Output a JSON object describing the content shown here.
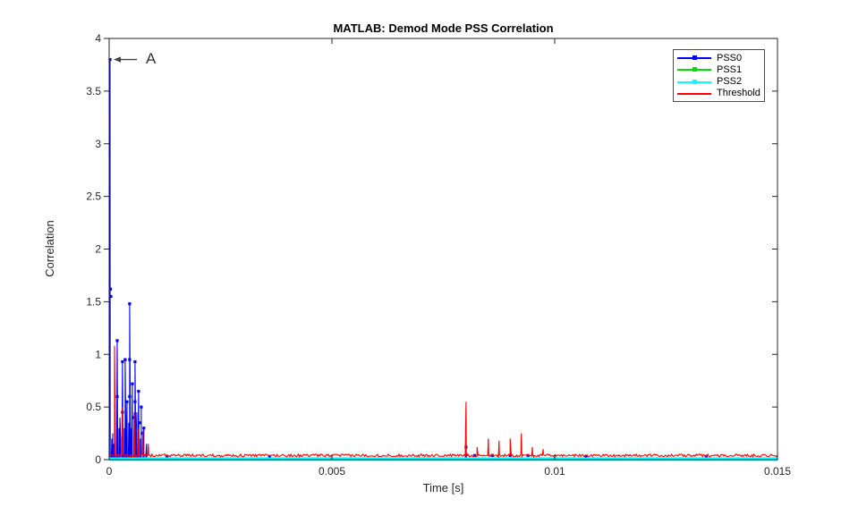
{
  "figure": {
    "title": "MATLAB: Demod Mode PSS Correlation",
    "xlabel": "Time [s]",
    "ylabel": "Correlation",
    "background_color": "#ffffff",
    "axis_color": "#262626"
  },
  "annotation": {
    "text": "A",
    "arrow_glyph": "left-arrow",
    "points_to": {
      "x": 2e-05,
      "y": 3.8
    },
    "color": "#333333"
  },
  "legend": {
    "position": "top-right",
    "entries": [
      {
        "label": "PSS0",
        "color": "#0000ff",
        "marker": true
      },
      {
        "label": "PSS1",
        "color": "#00e000",
        "marker": true
      },
      {
        "label": "PSS2",
        "color": "#00ffff",
        "marker": true
      },
      {
        "label": "Threshold",
        "color": "#ff0000",
        "marker": false
      }
    ]
  },
  "chart_data": {
    "type": "line",
    "title": "MATLAB: Demod Mode PSS Correlation",
    "xlabel": "Time [s]",
    "ylabel": "Correlation",
    "xlim": [
      0,
      0.015
    ],
    "ylim": [
      0,
      4
    ],
    "grid": false,
    "legend_position": "top-right",
    "xticks": {
      "values": [
        0,
        0.005,
        0.01,
        0.015
      ],
      "labels": [
        "0",
        "0.005",
        "0.01",
        "0.015"
      ]
    },
    "yticks": {
      "values": [
        0,
        0.5,
        1,
        1.5,
        2,
        2.5,
        3,
        3.5,
        4
      ],
      "labels": [
        "0",
        "0.5",
        "1",
        "1.5",
        "2",
        "2.5",
        "3",
        "3.5",
        "4"
      ]
    },
    "series": [
      {
        "name": "PSS0",
        "color": "#0000ff",
        "linewidth": 1.1,
        "baseline": 0.012,
        "noise_amp": 0.006,
        "spike_halfwidth": 2e-05,
        "spikes": [
          [
            2e-05,
            3.8
          ],
          [
            6e-05,
            0.2
          ],
          [
            8e-05,
            0.25
          ],
          [
            0.0001,
            0.15
          ],
          [
            0.00012,
            0.3
          ],
          [
            0.00014,
            0.25
          ],
          [
            0.00018,
            1.13
          ],
          [
            0.00022,
            0.3
          ],
          [
            0.00024,
            0.4
          ],
          [
            0.00026,
            0.2
          ],
          [
            0.0003,
            0.93
          ],
          [
            0.00034,
            0.3
          ],
          [
            0.00036,
            0.95
          ],
          [
            0.0004,
            0.55
          ],
          [
            0.00044,
            0.35
          ],
          [
            0.00046,
            1.48
          ],
          [
            0.0005,
            0.3
          ],
          [
            0.00052,
            0.72
          ],
          [
            0.00056,
            0.25
          ],
          [
            0.00058,
            0.93
          ],
          [
            0.00062,
            0.45
          ],
          [
            0.00066,
            0.65
          ],
          [
            0.0007,
            0.2
          ],
          [
            0.00072,
            0.5
          ],
          [
            0.00076,
            0.15
          ],
          [
            0.00078,
            0.3
          ],
          [
            0.00084,
            0.15
          ],
          [
            0.00801,
            0.12
          ]
        ],
        "markers": [
          [
            2e-05,
            3.8
          ],
          [
            3e-05,
            1.62
          ],
          [
            4e-05,
            1.55
          ],
          [
            0.00018,
            1.13
          ],
          [
            0.00018,
            0.6
          ],
          [
            0.0003,
            0.93
          ],
          [
            0.0003,
            0.45
          ],
          [
            0.00036,
            0.95
          ],
          [
            0.0004,
            0.55
          ],
          [
            0.00046,
            1.48
          ],
          [
            0.00046,
            0.95
          ],
          [
            0.00046,
            0.6
          ],
          [
            0.00052,
            0.72
          ],
          [
            0.00054,
            0.4
          ],
          [
            0.00058,
            0.93
          ],
          [
            0.00058,
            0.55
          ],
          [
            0.00066,
            0.65
          ],
          [
            0.00068,
            0.35
          ],
          [
            0.00072,
            0.5
          ],
          [
            0.00074,
            0.25
          ],
          [
            0.00078,
            0.3
          ],
          [
            0.0013,
            0.03
          ],
          [
            0.0036,
            0.03
          ],
          [
            0.00801,
            0.12
          ],
          [
            0.0082,
            0.04
          ],
          [
            0.0086,
            0.04
          ],
          [
            0.009,
            0.04
          ],
          [
            0.0094,
            0.04
          ],
          [
            0.0107,
            0.03
          ],
          [
            0.0134,
            0.03
          ]
        ]
      },
      {
        "name": "PSS1",
        "color": "#00e000",
        "linewidth": 1.2,
        "baseline": 0.01,
        "noise_amp": 0,
        "spike_halfwidth": 2e-05,
        "spikes": [],
        "markers": []
      },
      {
        "name": "PSS2",
        "color": "#00ffff",
        "linewidth": 4,
        "baseline": 0.005,
        "noise_amp": 0,
        "spike_halfwidth": 2e-05,
        "spikes": [],
        "markers": []
      },
      {
        "name": "Threshold",
        "color": "#ff0000",
        "linewidth": 1.1,
        "baseline": 0.04,
        "noise_amp": 0.013,
        "spike_halfwidth": 4e-05,
        "spikes": [
          [
            0.00012,
            1.08,
            6e-05
          ],
          [
            0.0003,
            0.5,
            5e-05
          ],
          [
            0.00056,
            0.45,
            5e-05
          ],
          [
            0.00066,
            0.3,
            4e-05
          ],
          [
            0.00076,
            0.28,
            4e-05
          ],
          [
            0.00088,
            0.15,
            4e-05
          ],
          [
            0.00801,
            0.55,
            4e-05
          ],
          [
            0.00826,
            0.12,
            3e-05
          ],
          [
            0.00851,
            0.2,
            3e-05
          ],
          [
            0.00875,
            0.18,
            3e-05
          ],
          [
            0.009,
            0.2,
            3e-05
          ],
          [
            0.00925,
            0.25,
            3e-05
          ],
          [
            0.0095,
            0.12,
            3e-05
          ],
          [
            0.00974,
            0.1,
            3e-05
          ]
        ],
        "markers": []
      }
    ]
  }
}
